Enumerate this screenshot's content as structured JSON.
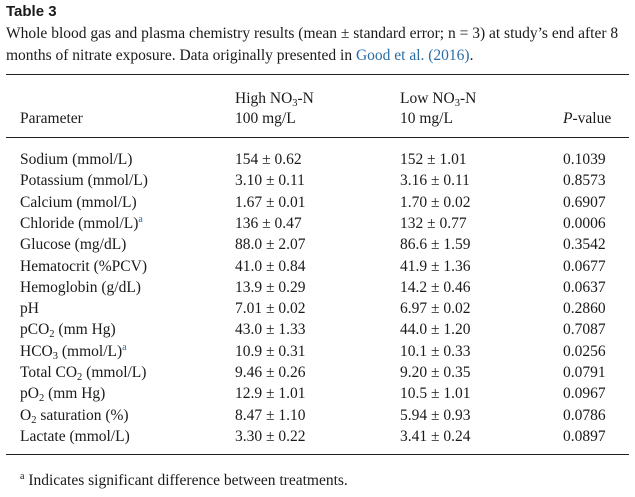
{
  "title": "Table 3",
  "caption": {
    "text": "Whole blood gas and plasma chemistry results (mean ± standard error; n = 3) at study’s end after 8 months of nitrate exposure. Data originally presented in ",
    "link": "Good et al. (2016)",
    "end": "."
  },
  "header": {
    "parameter": "Parameter",
    "high": {
      "line1_main": "High NO",
      "line1_sub": "3",
      "line1_tail": "-N",
      "line2": "100 mg/L"
    },
    "low": {
      "line1_main": "Low NO",
      "line1_sub": "3",
      "line1_tail": "-N",
      "line2": "10 mg/L"
    },
    "pvalue_italic": "P",
    "pvalue_rest": "-value"
  },
  "rows": [
    {
      "param": "Sodium (mmol/L)",
      "high": "154 ± 0.62",
      "low": "152 ± 1.01",
      "p": "0.1039"
    },
    {
      "param": "Potassium (mmol/L)",
      "high": "3.10 ± 0.11",
      "low": "3.16 ± 0.11",
      "p": "0.8573"
    },
    {
      "param": "Calcium (mmol/L)",
      "high": "1.67 ± 0.01",
      "low": "1.70 ± 0.02",
      "p": "0.6907"
    },
    {
      "param": "Chloride (mmol/L)",
      "sup": "a",
      "high": "136 ± 0.47",
      "low": "132 ± 0.77",
      "p": "0.0006"
    },
    {
      "param": "Glucose (mg/dL)",
      "high": "88.0 ± 2.07",
      "low": "86.6 ± 1.59",
      "p": "0.3542"
    },
    {
      "param": "Hematocrit (%PCV)",
      "high": "41.0 ± 0.84",
      "low": "41.9 ± 1.36",
      "p": "0.0677"
    },
    {
      "param": "Hemoglobin (g/dL)",
      "high": "13.9 ± 0.29",
      "low": "14.2 ± 0.46",
      "p": "0.0637"
    },
    {
      "param": "pH",
      "high": "7.01 ± 0.02",
      "low": "6.97 ± 0.02",
      "p": "0.2860"
    },
    {
      "param": "pCO",
      "sub": "2",
      "tail": " (mm Hg)",
      "high": "43.0 ± 1.33",
      "low": "44.0 ± 1.20",
      "p": "0.7087"
    },
    {
      "param": "HCO",
      "sub": "3",
      "tail": " (mmol/L)",
      "sup": "a",
      "high": "10.9 ± 0.31",
      "low": "10.1 ± 0.33",
      "p": "0.0256"
    },
    {
      "param": "Total CO",
      "sub": "2",
      "tail": " (mmol/L)",
      "high": "9.46 ± 0.26",
      "low": "9.20 ± 0.35",
      "p": "0.0791"
    },
    {
      "param": "pO",
      "sub": "2",
      "tail": " (mm Hg)",
      "high": "12.9 ± 1.01",
      "low": "10.5 ± 1.01",
      "p": "0.0967"
    },
    {
      "param": "O",
      "sub": "2",
      "tail": " saturation (%)",
      "high": "8.47 ± 1.10",
      "low": "5.94 ± 0.93",
      "p": "0.0786"
    },
    {
      "param": "Lactate (mmol/L)",
      "high": "3.30 ± 0.22",
      "low": "3.41 ± 0.24",
      "p": "0.0897"
    }
  ],
  "footnote": {
    "marker": "a",
    "text": " Indicates significant difference between treatments."
  },
  "colors": {
    "link": "#2b6ca3",
    "text": "#1a1a1a",
    "rule": "#222222"
  }
}
